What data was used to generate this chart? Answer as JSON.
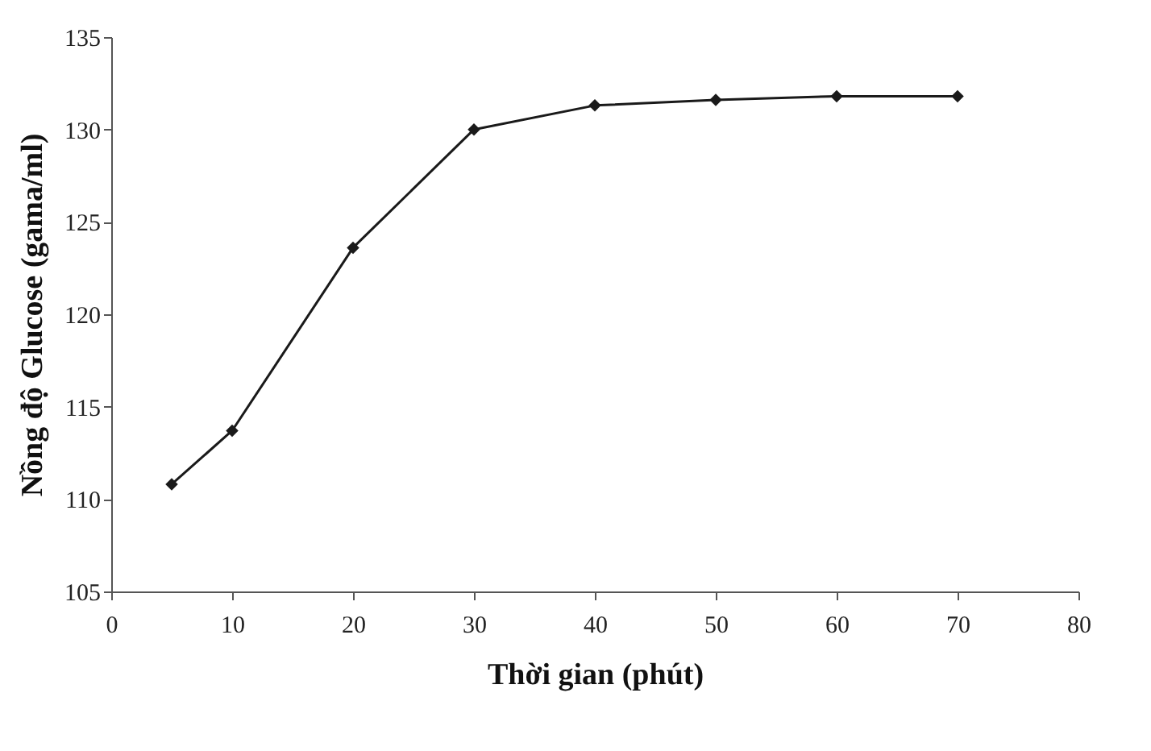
{
  "chart_data": {
    "type": "line",
    "xlabel": "Thời gian (phút)",
    "ylabel": "Nồng độ Glucose (gama/ml)",
    "x": [
      5,
      10,
      20,
      30,
      40,
      50,
      60,
      70
    ],
    "series": [
      {
        "color": "#1a1a1a",
        "values": [
          110.8,
          113.7,
          123.6,
          130.0,
          131.3,
          131.6,
          131.8,
          131.8
        ]
      }
    ],
    "xlim": [
      0,
      80
    ],
    "xticks": [
      0,
      10,
      20,
      30,
      40,
      50,
      60,
      70,
      80
    ],
    "ylim": [
      105,
      135
    ],
    "yticks": [
      105,
      110,
      115,
      120,
      125,
      130,
      135
    ],
    "marker": "diamond",
    "line_style": "solid"
  }
}
